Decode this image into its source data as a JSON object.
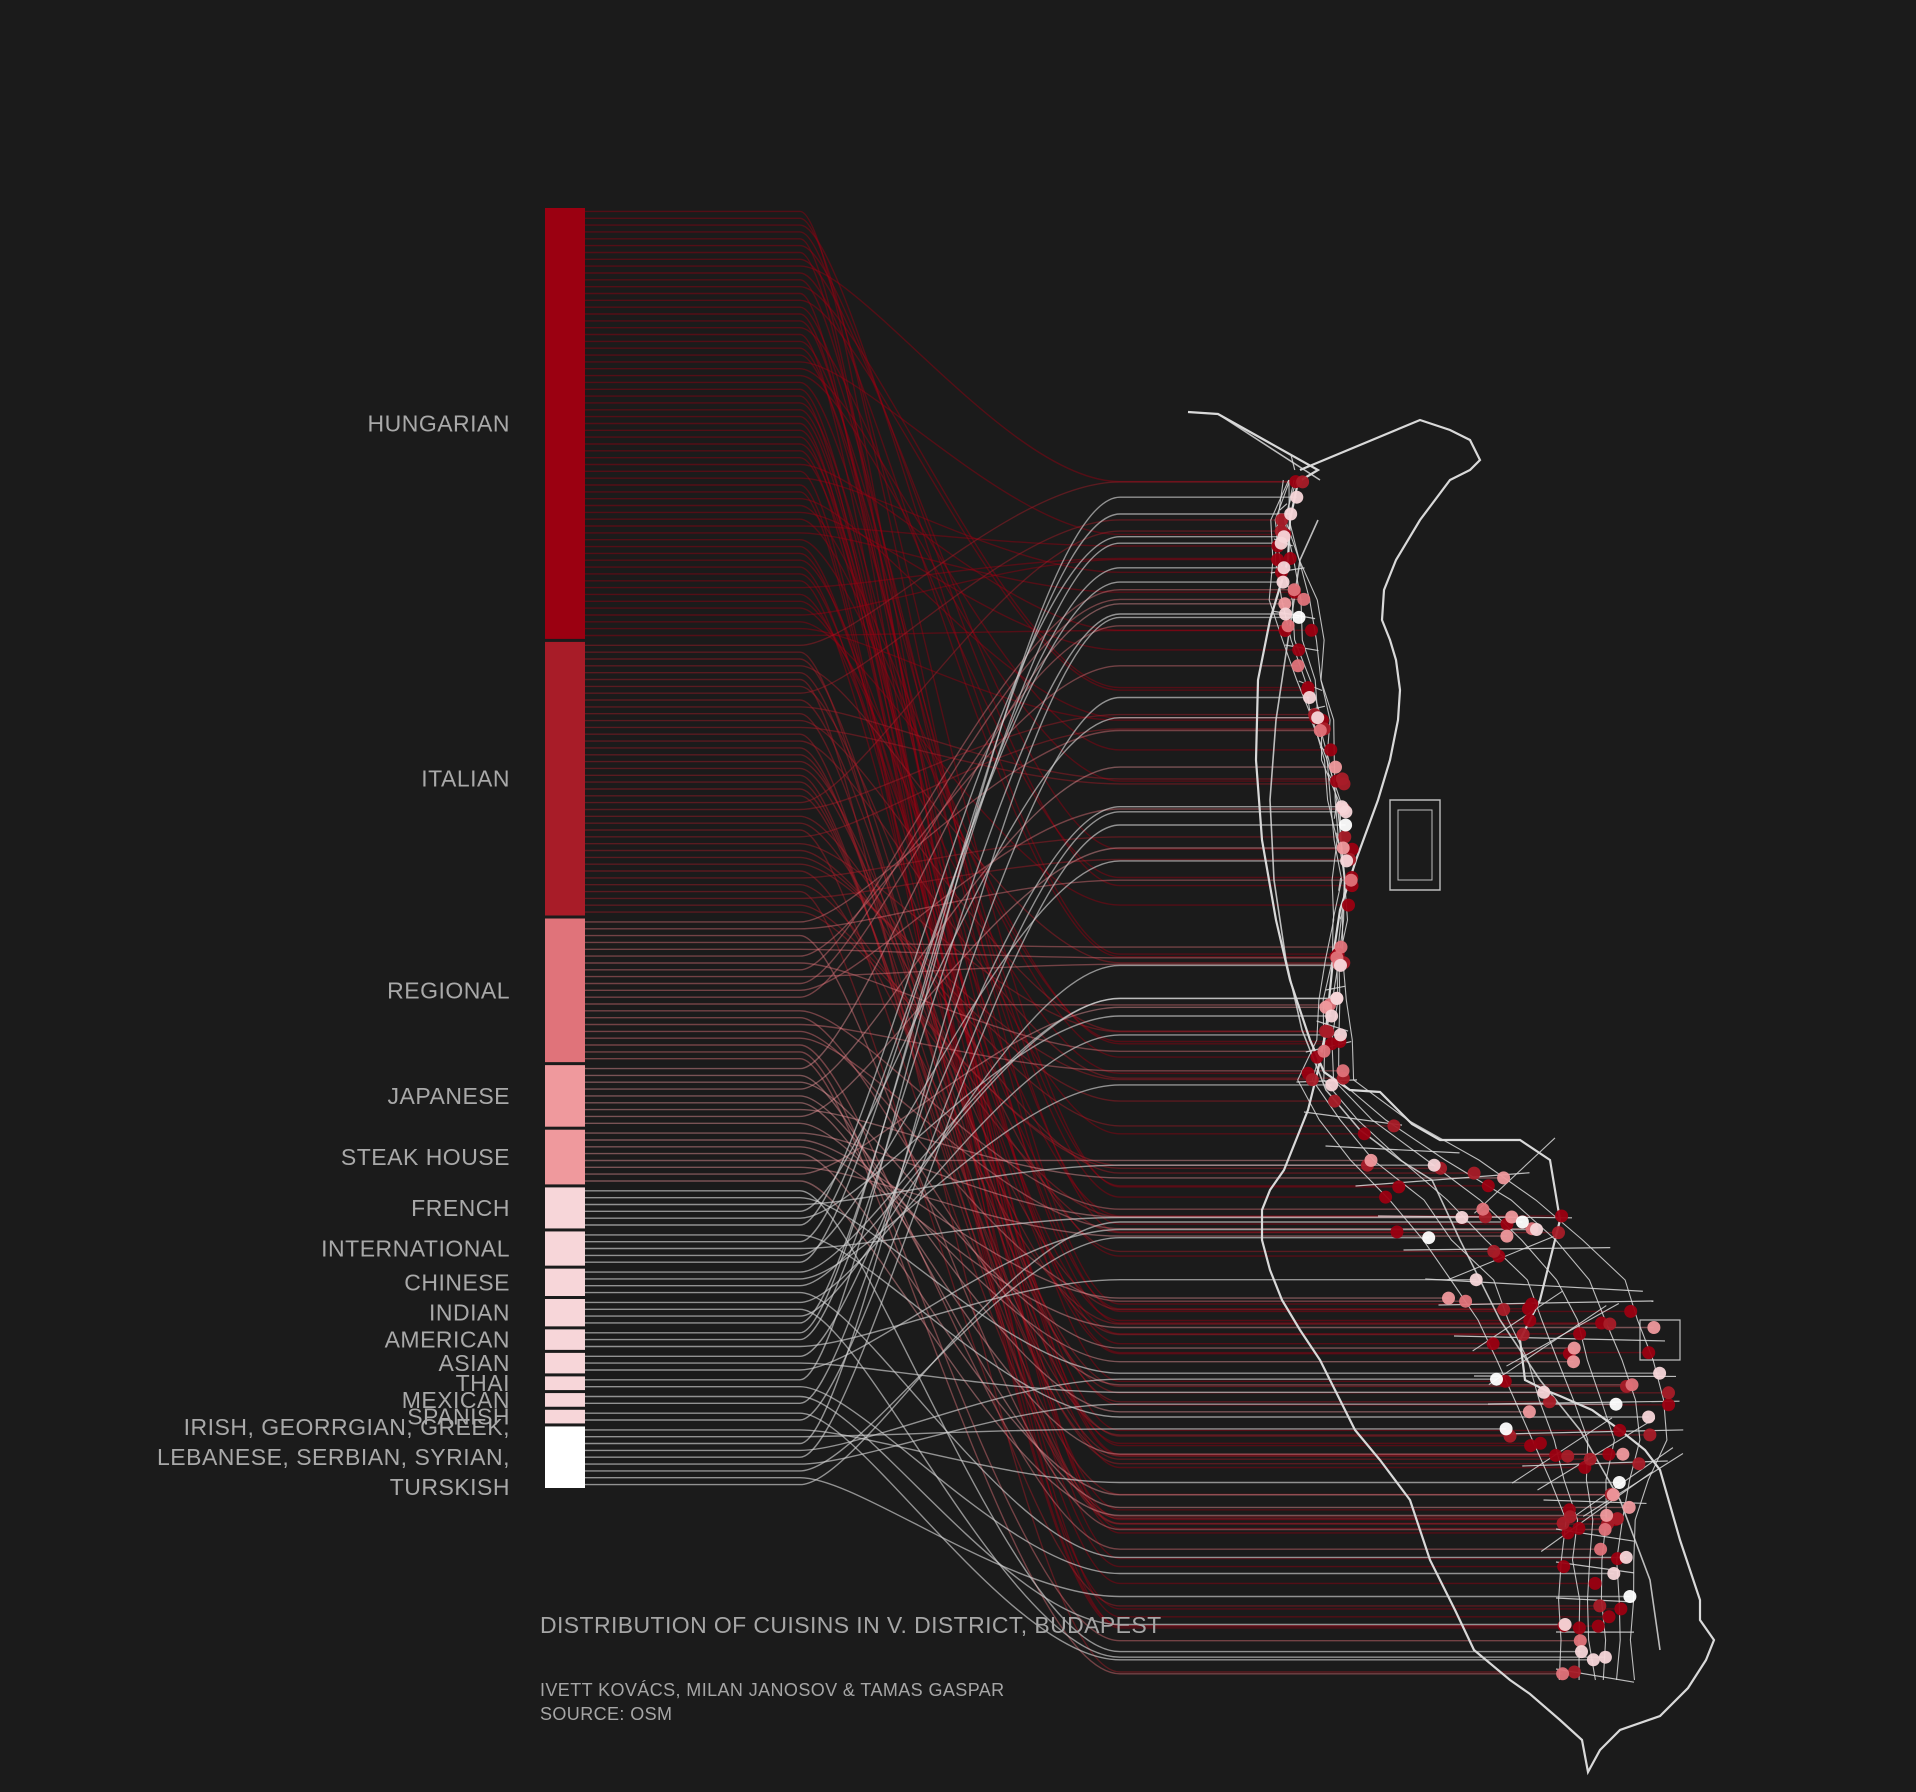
{
  "chart_data": {
    "type": "sankey",
    "title": "DISTRIBUTION OF CUISINS IN V. DISTRICT, BUDAPEST",
    "credit": "IVETT KOVÁCS,  MILAN JANOSOV & TAMAS GASPAR",
    "source": "SOURCE: OSM",
    "categories": [
      {
        "label": "HUNGARIAN",
        "count": 63,
        "color": "#9b0011"
      },
      {
        "label": "ITALIAN",
        "count": 40,
        "color": "#a81c28"
      },
      {
        "label": "REGIONAL",
        "count": 21,
        "color": "#e0737a"
      },
      {
        "label": "JAPANESE",
        "count": 9,
        "color": "#ef999d"
      },
      {
        "label": "STEAK HOUSE",
        "count": 8,
        "color": "#ef999d"
      },
      {
        "label": "FRENCH",
        "count": 6,
        "color": "#f7d6d9"
      },
      {
        "label": "INTERNATIONAL",
        "count": 5,
        "color": "#f7d6d9"
      },
      {
        "label": "CHINESE",
        "count": 4,
        "color": "#f7d6d9"
      },
      {
        "label": "INDIAN",
        "count": 4,
        "color": "#f7d6d9"
      },
      {
        "label": "AMERICAN",
        "count": 3,
        "color": "#f7d6d9"
      },
      {
        "label": "ASIAN",
        "count": 3,
        "color": "#f7d6d9"
      },
      {
        "label": "THAI",
        "count": 2,
        "color": "#f7d6d9"
      },
      {
        "label": "MEXICAN",
        "count": 2,
        "color": "#f7d6d9"
      },
      {
        "label": "SPANISH",
        "count": 2,
        "color": "#f7d6d9"
      },
      {
        "label": "IRISH, GEORRGIAN, GREEK, LEBANESE, SERBIAN, SYRIAN, TURSKISH",
        "label_lines": [
          "IRISH, GEORRGIAN, GREEK,",
          "LEBANESE, SERBIAN, SYRIAN,",
          "TURSKISH"
        ],
        "count": 9,
        "color": "#ffffff"
      }
    ],
    "colors": {
      "background": "#1b1b1b",
      "street": "#d9d9d9",
      "label": "#a9a9a9"
    }
  }
}
